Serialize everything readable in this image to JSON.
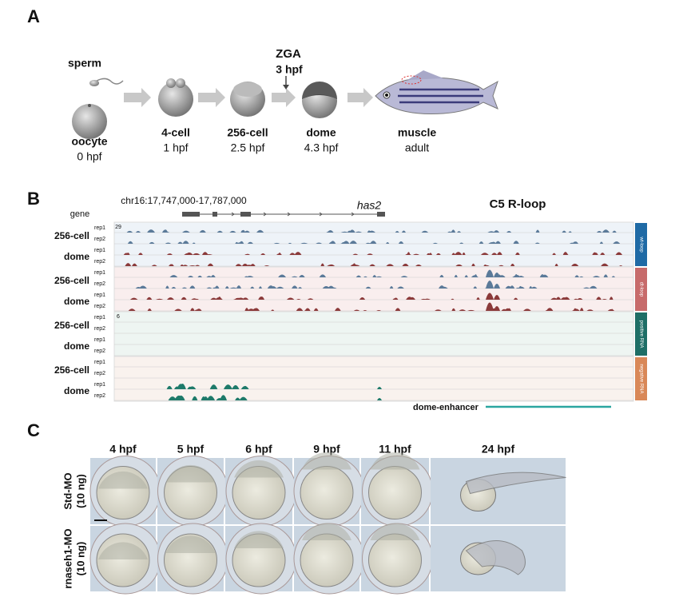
{
  "panel_a": {
    "label": "A",
    "zga": {
      "label": "ZGA",
      "time": "3 hpf"
    },
    "stages": [
      {
        "name": "sperm"
      },
      {
        "name": "oocyte",
        "time": "0 hpf"
      },
      {
        "name": "4-cell",
        "time": "1 hpf"
      },
      {
        "name": "256-cell",
        "time": "2.5 hpf"
      },
      {
        "name": "dome",
        "time": "4.3 hpf"
      },
      {
        "name": "muscle",
        "time": "adult"
      }
    ]
  },
  "panel_b": {
    "label": "B",
    "coords": "chr16:17,747,000-17,787,000",
    "gene_name": "has2",
    "title": "C5 R-loop",
    "gene_label": "gene",
    "groups": [
      {
        "side_label": "wt-loop",
        "scale": "29",
        "tracks": [
          {
            "stage": "256-cell",
            "reps": [
              "rep1",
              "rep2"
            ]
          },
          {
            "stage": "dome",
            "reps": [
              "rep1",
              "rep2"
            ]
          }
        ]
      },
      {
        "side_label": "dt-loop",
        "tracks": [
          {
            "stage": "256-cell",
            "reps": [
              "rep1",
              "rep2"
            ]
          },
          {
            "stage": "dome",
            "reps": [
              "rep1",
              "rep2"
            ]
          }
        ]
      },
      {
        "side_label": "positive RNA",
        "scale": "6",
        "tracks": [
          {
            "stage": "256-cell",
            "reps": [
              "rep1",
              "rep2"
            ]
          },
          {
            "stage": "dome",
            "reps": [
              "rep1",
              "rep2"
            ]
          }
        ]
      },
      {
        "side_label": "negative RNA",
        "tracks": [
          {
            "stage": "256-cell",
            "reps": [
              "rep1",
              "rep2"
            ]
          },
          {
            "stage": "dome",
            "reps": [
              "rep1",
              "rep2"
            ]
          }
        ]
      }
    ],
    "enhancer": "dome-enhancer"
  },
  "panel_c": {
    "label": "C",
    "times": [
      "4 hpf",
      "5 hpf",
      "6 hpf",
      "9 hpf",
      "11 hpf",
      "24 hpf"
    ],
    "rows": [
      {
        "name": "Std-MO",
        "dose": "(10 ng)"
      },
      {
        "name": "rnaseh1-MO",
        "dose": "(10 ng)"
      }
    ]
  }
}
